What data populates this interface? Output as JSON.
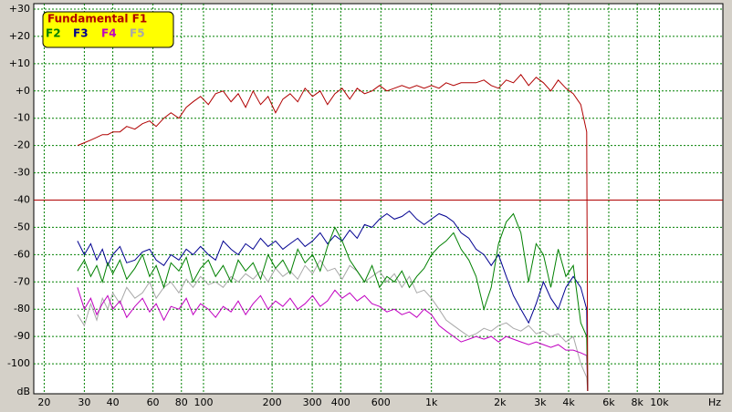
{
  "chart_data": {
    "type": "line",
    "x_label": "Hz",
    "y_label": "dB",
    "log_x": true,
    "grid": true,
    "legend_position": "upper left",
    "x": [
      28,
      30,
      32,
      34,
      36,
      38,
      40,
      43,
      46,
      50,
      54,
      58,
      62,
      67,
      72,
      78,
      84,
      90,
      97,
      105,
      113,
      122,
      132,
      142,
      153,
      165,
      178,
      192,
      207,
      223,
      240,
      259,
      279,
      301,
      325,
      350,
      377,
      406,
      438,
      472,
      509,
      549,
      592,
      638,
      688,
      742,
      800,
      862,
      929,
      1000,
      1080,
      1160,
      1250,
      1350,
      1460,
      1570,
      1700,
      1830,
      1970,
      2130,
      2290,
      2470,
      2670,
      2880,
      3100,
      3340,
      3600,
      3890,
      4190,
      4520,
      4800,
      4850
    ],
    "series": [
      {
        "name": "Fundamental F1",
        "color": "#b00000",
        "values": [
          -20,
          -19,
          -18,
          -17,
          -16,
          -16,
          -15,
          -15,
          -13,
          -14,
          -12,
          -11,
          -13,
          -10,
          -8,
          -10,
          -6,
          -4,
          -2,
          -5,
          -1,
          0,
          -4,
          -1,
          -6,
          0,
          -5,
          -2,
          -8,
          -3,
          -1,
          -4,
          1,
          -2,
          0,
          -5,
          -1,
          1,
          -3,
          1,
          -1,
          0,
          2,
          0,
          1,
          2,
          1,
          2,
          1,
          2,
          1,
          3,
          2,
          3,
          3,
          3,
          4,
          2,
          1,
          4,
          3,
          6,
          2,
          5,
          3,
          0,
          4,
          1,
          -1,
          -5,
          -15,
          -110
        ]
      },
      {
        "name": "F2",
        "color": "#008000",
        "values": [
          -66,
          -62,
          -68,
          -64,
          -70,
          -63,
          -67,
          -62,
          -69,
          -65,
          -60,
          -68,
          -64,
          -72,
          -63,
          -66,
          -61,
          -70,
          -65,
          -62,
          -68,
          -64,
          -70,
          -62,
          -66,
          -63,
          -69,
          -60,
          -65,
          -62,
          -67,
          -58,
          -63,
          -60,
          -66,
          -57,
          -50,
          -55,
          -62,
          -66,
          -70,
          -64,
          -72,
          -68,
          -70,
          -66,
          -72,
          -68,
          -65,
          -60,
          -57,
          -55,
          -52,
          -58,
          -62,
          -68,
          -80,
          -72,
          -56,
          -48,
          -45,
          -52,
          -70,
          -56,
          -60,
          -72,
          -58,
          -68,
          -64,
          -85,
          -90,
          -110
        ]
      },
      {
        "name": "F3",
        "color": "#000090",
        "values": [
          -55,
          -60,
          -56,
          -62,
          -58,
          -64,
          -60,
          -57,
          -63,
          -62,
          -59,
          -58,
          -62,
          -64,
          -60,
          -62,
          -58,
          -60,
          -57,
          -60,
          -62,
          -55,
          -58,
          -60,
          -56,
          -58,
          -54,
          -57,
          -55,
          -58,
          -56,
          -54,
          -57,
          -55,
          -52,
          -56,
          -53,
          -55,
          -51,
          -54,
          -49,
          -50,
          -47,
          -45,
          -47,
          -46,
          -44,
          -47,
          -49,
          -47,
          -45,
          -46,
          -48,
          -52,
          -54,
          -58,
          -60,
          -64,
          -60,
          -68,
          -75,
          -80,
          -85,
          -78,
          -70,
          -76,
          -80,
          -72,
          -68,
          -72,
          -80,
          -110
        ]
      },
      {
        "name": "F4",
        "color": "#c000c0",
        "values": [
          -72,
          -80,
          -76,
          -82,
          -78,
          -75,
          -80,
          -77,
          -83,
          -79,
          -76,
          -81,
          -78,
          -84,
          -79,
          -80,
          -76,
          -82,
          -78,
          -80,
          -83,
          -79,
          -81,
          -77,
          -82,
          -78,
          -75,
          -80,
          -77,
          -79,
          -76,
          -80,
          -78,
          -75,
          -79,
          -77,
          -73,
          -76,
          -74,
          -77,
          -75,
          -78,
          -79,
          -81,
          -80,
          -82,
          -81,
          -83,
          -80,
          -82,
          -86,
          -88,
          -90,
          -92,
          -91,
          -90,
          -91,
          -90,
          -92,
          -90,
          -91,
          -92,
          -93,
          -92,
          -93,
          -94,
          -93,
          -95,
          -95,
          -96,
          -97,
          -110
        ]
      },
      {
        "name": "F5",
        "color": "#a8a8a8",
        "values": [
          -82,
          -86,
          -78,
          -84,
          -76,
          -80,
          -74,
          -78,
          -72,
          -76,
          -74,
          -70,
          -76,
          -72,
          -70,
          -74,
          -69,
          -72,
          -68,
          -71,
          -70,
          -72,
          -68,
          -70,
          -67,
          -69,
          -66,
          -70,
          -65,
          -68,
          -66,
          -69,
          -64,
          -67,
          -62,
          -66,
          -65,
          -69,
          -64,
          -66,
          -70,
          -68,
          -66,
          -70,
          -67,
          -72,
          -68,
          -74,
          -73,
          -76,
          -80,
          -84,
          -86,
          -88,
          -90,
          -89,
          -87,
          -88,
          -86,
          -85,
          -87,
          -88,
          -86,
          -89,
          -88,
          -90,
          -89,
          -92,
          -90,
          -100,
          -105,
          -110
        ]
      }
    ],
    "reference_line": {
      "value": -40,
      "color": "#b00000"
    },
    "xlim": [
      18,
      19000
    ],
    "xticks": [
      20,
      30,
      40,
      60,
      80,
      100,
      200,
      300,
      400,
      600,
      {
        "value": 1000,
        "label": "1k"
      },
      {
        "value": 2000,
        "label": "2k"
      },
      {
        "value": 3000,
        "label": "3k"
      },
      {
        "value": 4000,
        "label": "4k"
      },
      {
        "value": 6000,
        "label": "6k"
      },
      {
        "value": 8000,
        "label": "8k"
      },
      {
        "value": 10000,
        "label": "10k"
      }
    ],
    "ylim": [
      -111,
      32
    ],
    "yticks": [
      {
        "value": 30,
        "label": "+30"
      },
      {
        "value": 20,
        "label": "+20"
      },
      {
        "value": 10,
        "label": "+10"
      },
      {
        "value": 0,
        "label": "+0"
      },
      -10,
      -20,
      -30,
      -40,
      -50,
      -60,
      -70,
      -80,
      -90,
      -100
    ]
  }
}
